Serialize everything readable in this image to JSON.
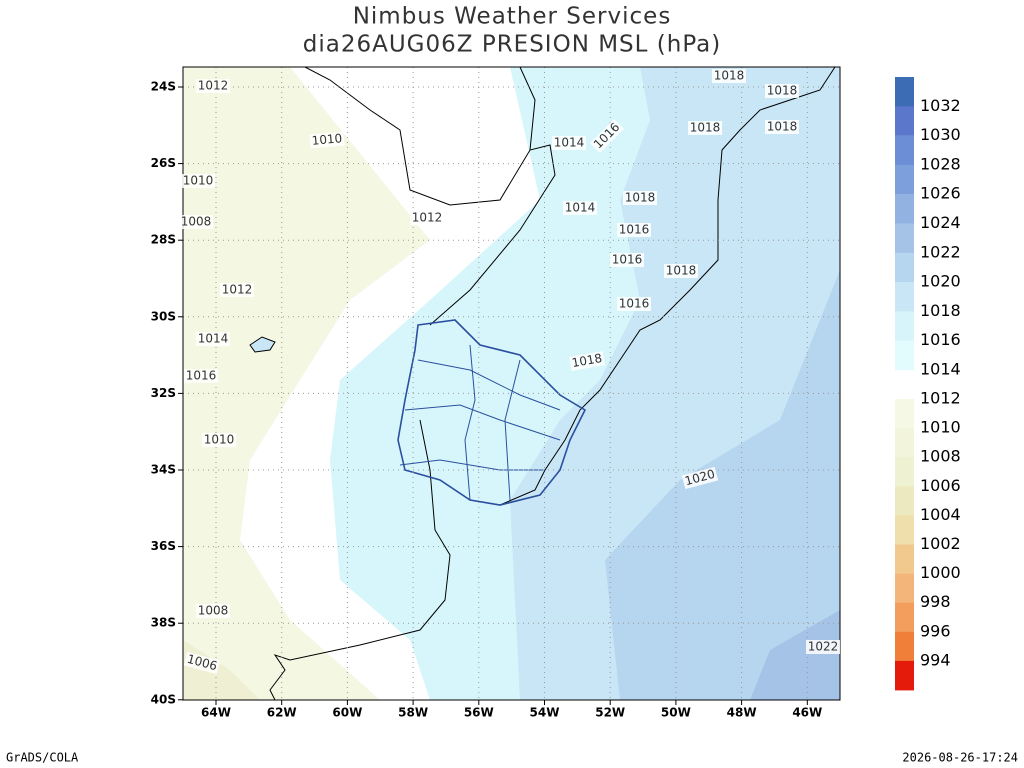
{
  "header": {
    "title": "Nimbus Weather Services",
    "subtitle": "dia26AUG06Z PRESION MSL (hPa)"
  },
  "map": {
    "lat_labels": [
      "24S",
      "26S",
      "28S",
      "30S",
      "32S",
      "34S",
      "36S",
      "38S",
      "40S"
    ],
    "lon_labels": [
      "64W",
      "62W",
      "60W",
      "58W",
      "56W",
      "54W",
      "52W",
      "50W",
      "48W",
      "46W"
    ],
    "contour_labels": [
      "1012",
      "1010",
      "1010",
      "1008",
      "1012",
      "1012",
      "1014",
      "1016",
      "1010",
      "1008",
      "1006",
      "1014",
      "1016",
      "1018",
      "1018",
      "1018",
      "1018",
      "1018",
      "1014",
      "1016",
      "1016",
      "1018",
      "1016",
      "1018",
      "1020",
      "1022"
    ]
  },
  "colorbar": [
    {
      "label": "1032",
      "color": "#3c6cb4"
    },
    {
      "label": "1030",
      "color": "#5a77cc"
    },
    {
      "label": "1028",
      "color": "#6b8ed6"
    },
    {
      "label": "1026",
      "color": "#7d9fdc"
    },
    {
      "label": "1024",
      "color": "#92b2e2"
    },
    {
      "label": "1022",
      "color": "#a5c3e7"
    },
    {
      "label": "1020",
      "color": "#b6d5ee"
    },
    {
      "label": "1018",
      "color": "#c8e6f5"
    },
    {
      "label": "1016",
      "color": "#d6f4fa"
    },
    {
      "label": "1014",
      "color": "#e2fcfe"
    },
    {
      "label": "1012",
      "color": "#f6f8e6"
    },
    {
      "label": "1010",
      "color": "#f2f5dc"
    },
    {
      "label": "1008",
      "color": "#eef2d2"
    },
    {
      "label": "1006",
      "color": "#ece9c0"
    },
    {
      "label": "1004",
      "color": "#eedfac"
    },
    {
      "label": "1002",
      "color": "#f1c98f"
    },
    {
      "label": "1000",
      "color": "#f3b579"
    },
    {
      "label": "998",
      "color": "#f39e5c"
    },
    {
      "label": "996",
      "color": "#f07f3a"
    },
    {
      "label": "994",
      "color": "#e41a0a"
    }
  ],
  "footer": {
    "left": "GrADS/COLA",
    "right": "2026-08-26-17:24"
  }
}
